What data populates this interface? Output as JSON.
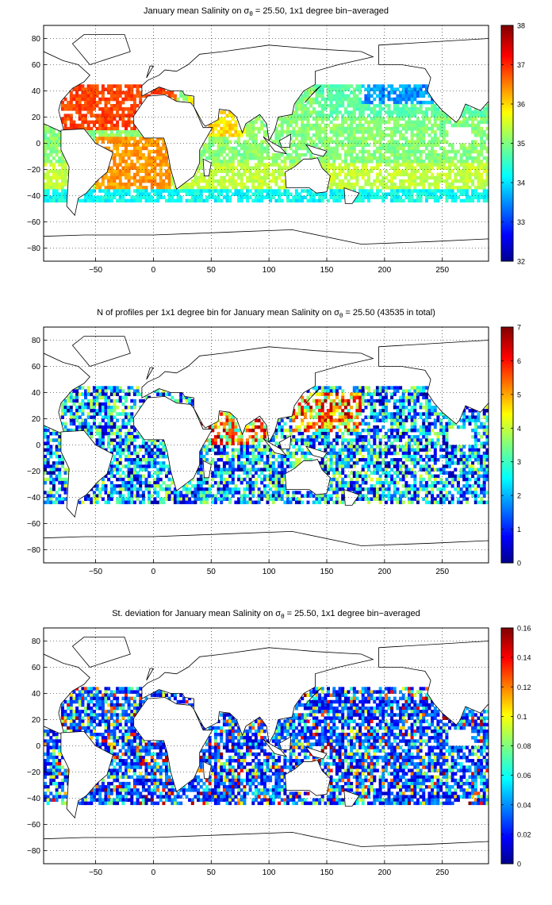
{
  "chart_data": [
    {
      "type": "heatmap",
      "title_prefix": "January mean Salinity on ",
      "title_symbol": "σ",
      "title_subscript": "θ",
      "title_suffix": " = 25.50, 1x1 degree bin−averaged",
      "x_ticks": [
        "−50",
        "0",
        "50",
        "100",
        "150",
        "200",
        "250"
      ],
      "y_ticks": [
        "80",
        "60",
        "40",
        "20",
        "0",
        "−20",
        "−40",
        "−60",
        "−80"
      ],
      "xlim": [
        -95,
        290
      ],
      "ylim": [
        -90,
        90
      ],
      "grid": true,
      "colorbar": {
        "ticks": [
          "38",
          "37",
          "36",
          "35",
          "34",
          "33",
          "32"
        ],
        "range": [
          32,
          38
        ],
        "colormap": "jet"
      }
    },
    {
      "type": "heatmap",
      "title_prefix": "N of profiles per 1x1 degree bin for January mean Salinity on ",
      "title_symbol": "σ",
      "title_subscript": "θ",
      "title_suffix": " = 25.50 (43535 in total)",
      "x_ticks": [
        "−50",
        "0",
        "50",
        "100",
        "150",
        "200",
        "250"
      ],
      "y_ticks": [
        "80",
        "60",
        "40",
        "20",
        "0",
        "−20",
        "−40",
        "−60",
        "−80"
      ],
      "xlim": [
        -95,
        290
      ],
      "ylim": [
        -90,
        90
      ],
      "grid": true,
      "colorbar": {
        "ticks": [
          "7",
          "6",
          "5",
          "4",
          "3",
          "2",
          "1",
          "0"
        ],
        "range": [
          0,
          7
        ],
        "colormap": "jet"
      }
    },
    {
      "type": "heatmap",
      "title_prefix": "St. deviation for January mean Salinity on ",
      "title_symbol": "σ",
      "title_subscript": "θ",
      "title_suffix": " = 25.50, 1x1 degree bin−averaged",
      "x_ticks": [
        "−50",
        "0",
        "50",
        "100",
        "150",
        "200",
        "250"
      ],
      "y_ticks": [
        "80",
        "60",
        "40",
        "20",
        "0",
        "−20",
        "−40",
        "−60",
        "−80"
      ],
      "xlim": [
        -95,
        290
      ],
      "ylim": [
        -90,
        90
      ],
      "grid": true,
      "colorbar": {
        "ticks": [
          "0.16",
          "0.14",
          "0.12",
          "0.1",
          "0.08",
          "0.06",
          "0.04",
          "0.02",
          "0"
        ],
        "range": [
          0,
          0.16
        ],
        "colormap": "jet"
      }
    }
  ]
}
